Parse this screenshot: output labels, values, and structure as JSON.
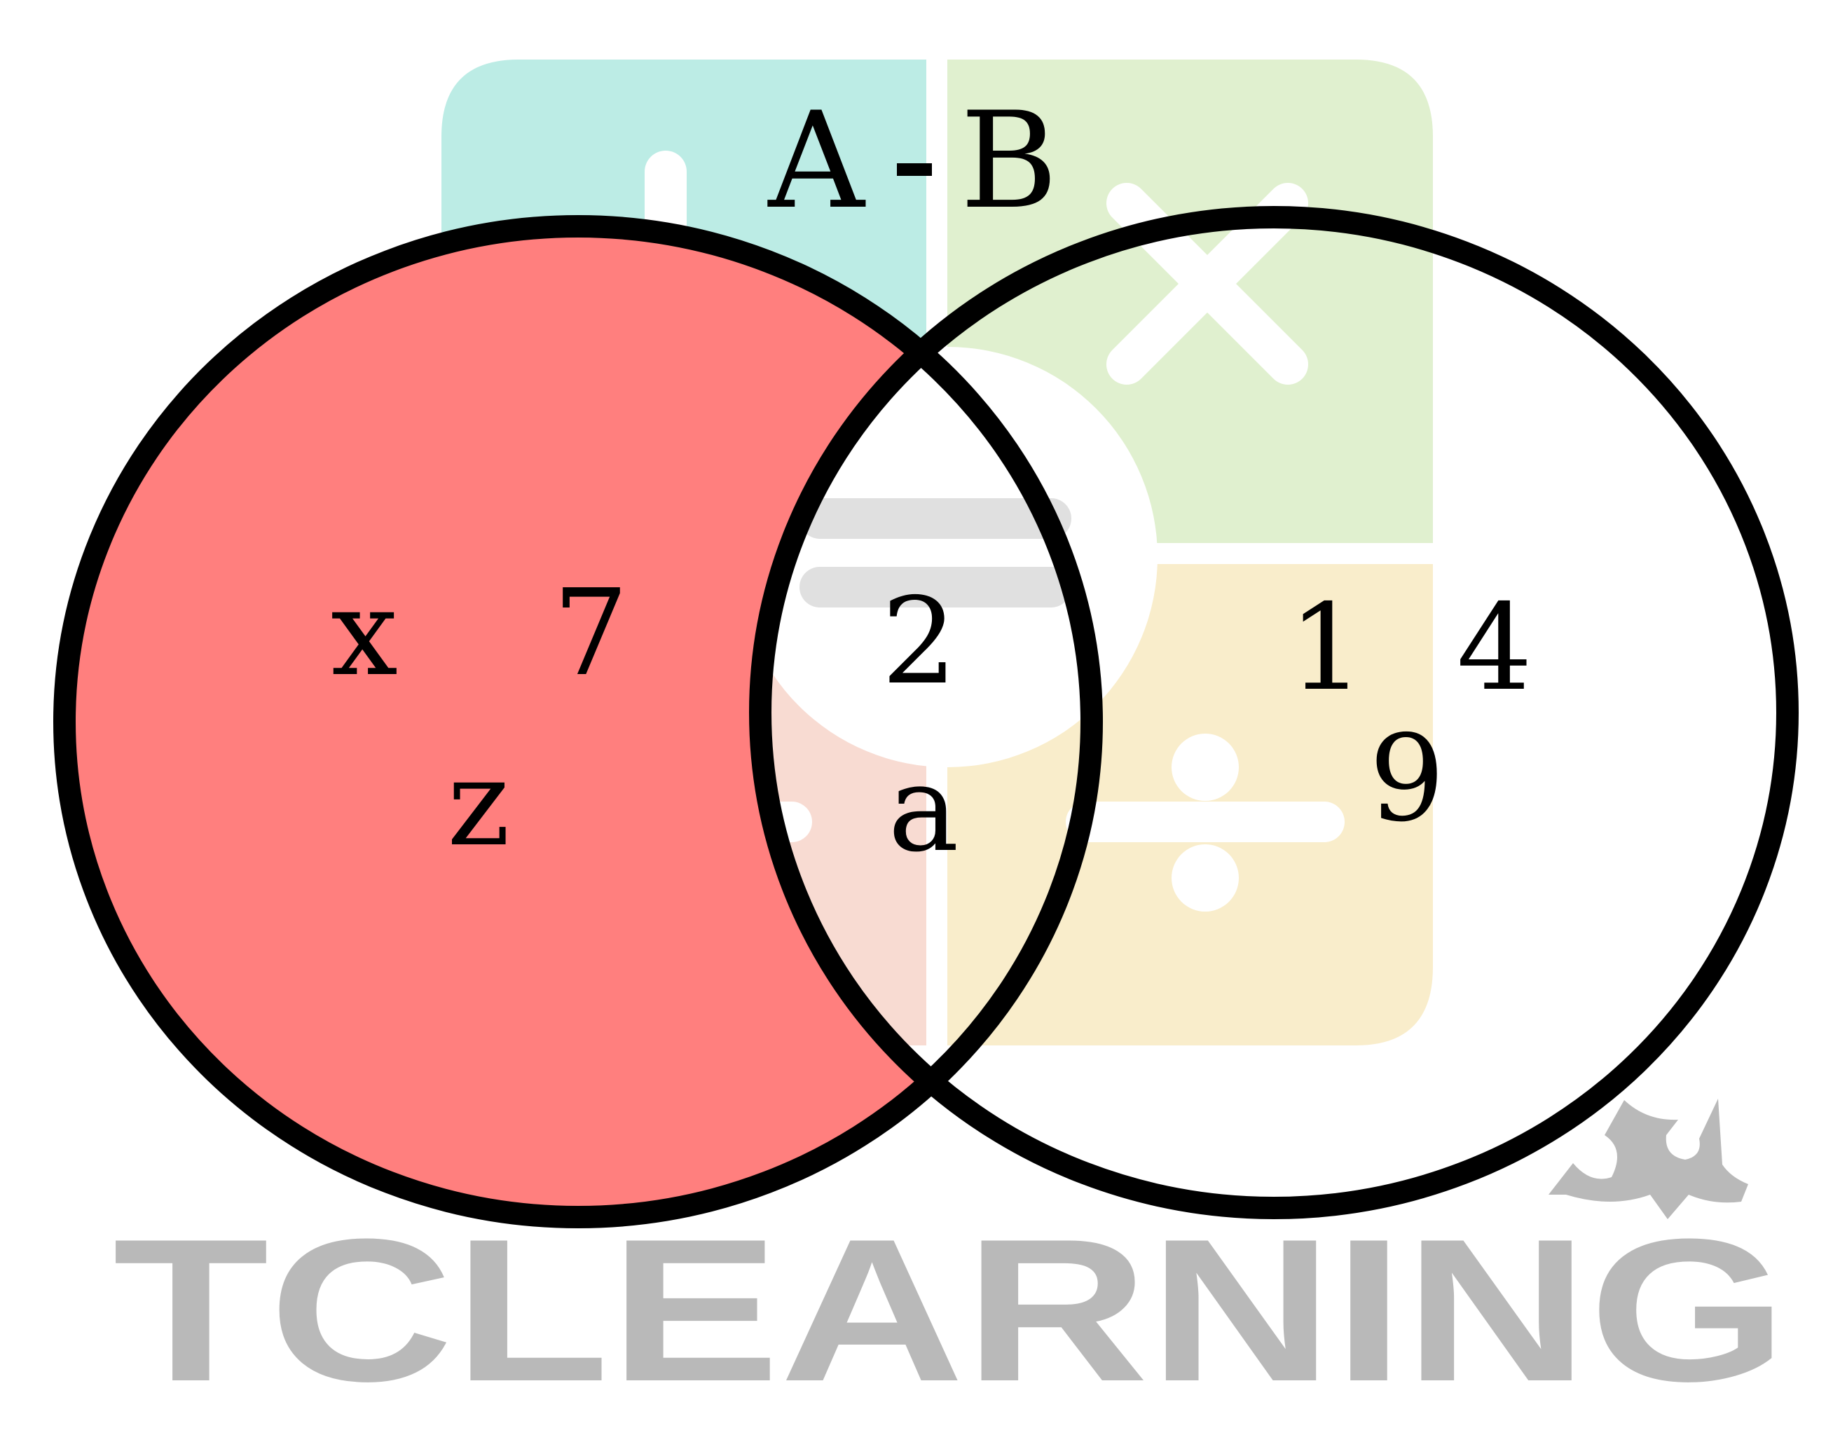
{
  "title": "A - B",
  "sets": {
    "a_label": "A",
    "b_label": "B",
    "a_only": [
      "x",
      "7",
      "z"
    ],
    "intersection": [
      "2",
      "a"
    ],
    "b_only": [
      "1",
      "4",
      "9"
    ]
  },
  "watermark": {
    "text": "TCLEARNING"
  },
  "colors": {
    "shade": "#ff7f7e",
    "outline": "#000000",
    "watermark_text": "#b9b9b9",
    "logo_teal": "#bcece5",
    "logo_green": "#e0f0cf",
    "logo_yellow": "#f9edcb",
    "logo_pink": "#f8dbd2",
    "logo_gray": "#e0e0e0"
  },
  "icons": [
    "plus-icon",
    "times-icon",
    "minus-icon",
    "equals-icon",
    "divide-icon",
    "crown-icon"
  ]
}
